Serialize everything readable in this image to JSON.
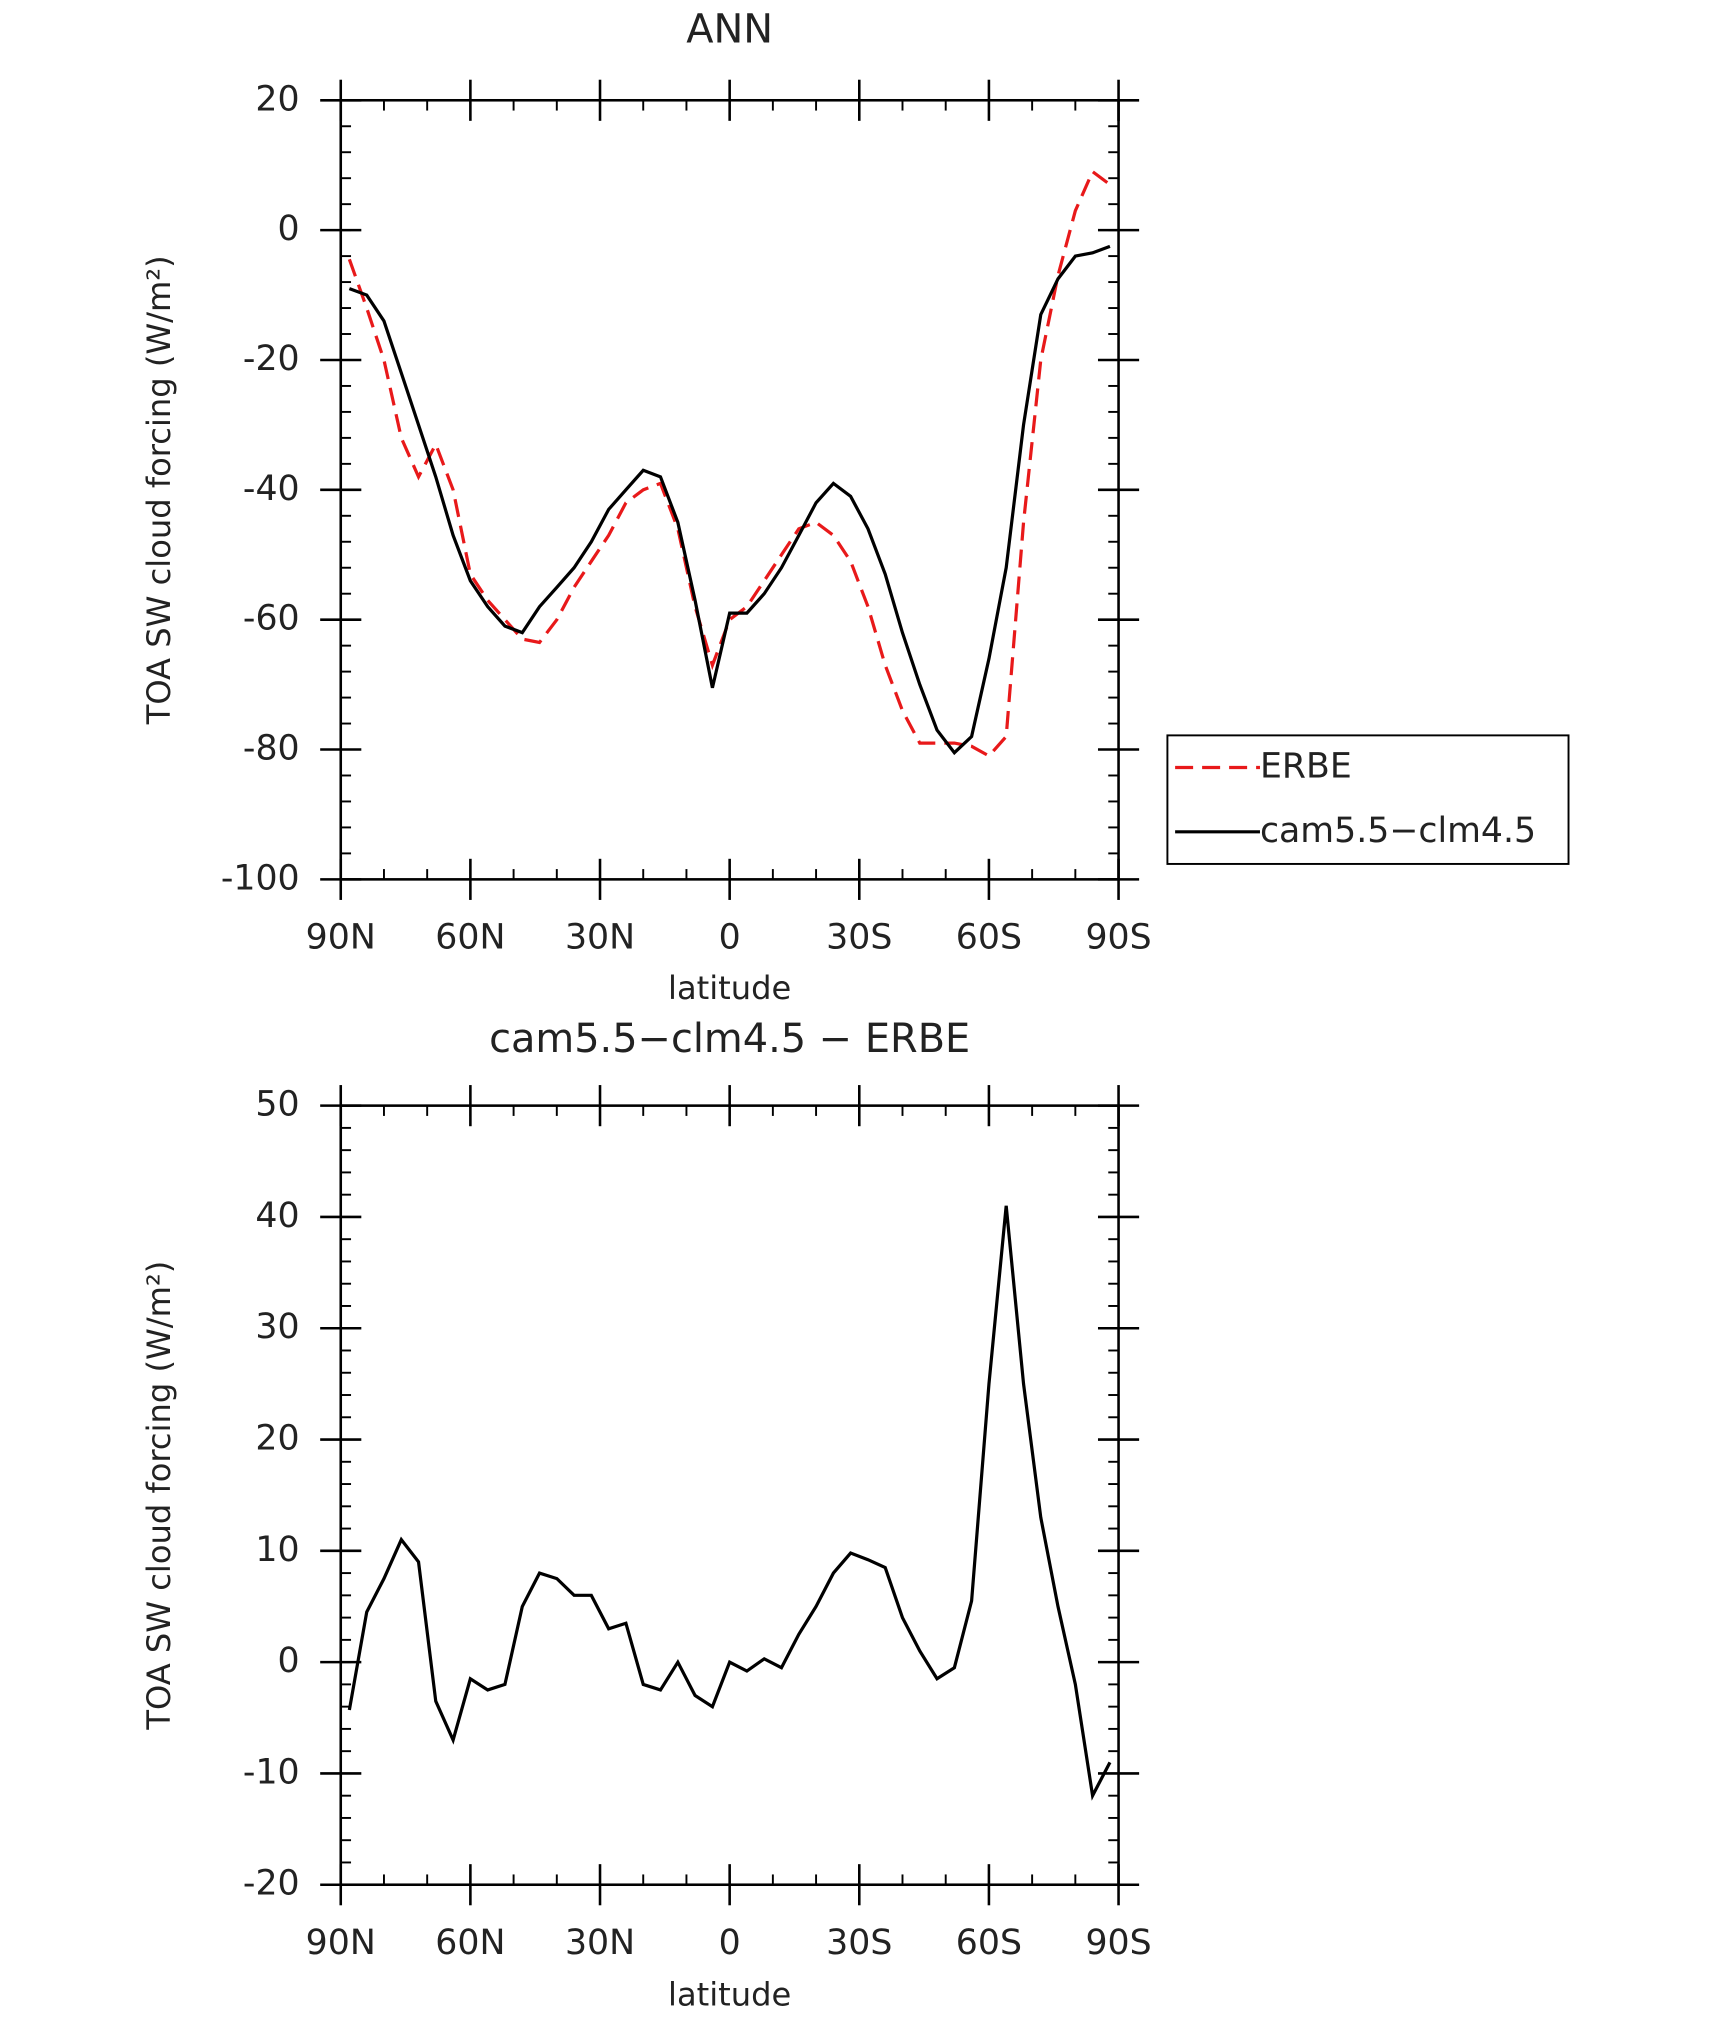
{
  "chart_data": [
    {
      "type": "line",
      "title": "ANN",
      "x_label": "latitude",
      "y_label": "TOA SW cloud forcing (W/m²)",
      "xlim": [
        90,
        -90
      ],
      "ylim": [
        -100,
        20
      ],
      "xticks": [
        {
          "value": 90,
          "label": "90N"
        },
        {
          "value": 60,
          "label": "60N"
        },
        {
          "value": 30,
          "label": "30N"
        },
        0,
        {
          "value": -30,
          "label": "30S"
        },
        {
          "value": -60,
          "label": "60S"
        },
        {
          "value": -90,
          "label": "90S"
        }
      ],
      "yticks": [
        -100,
        -80,
        -60,
        -40,
        -20,
        0,
        20
      ],
      "legend": "right",
      "x": [
        88,
        84,
        80,
        76,
        72,
        68,
        64,
        60,
        56,
        52,
        48,
        44,
        40,
        36,
        32,
        28,
        24,
        20,
        16,
        12,
        8,
        4,
        0,
        -4,
        -8,
        -12,
        -16,
        -20,
        -24,
        -28,
        -32,
        -36,
        -40,
        -44,
        -48,
        -52,
        -56,
        -60,
        -64,
        -68,
        -72,
        -76,
        -80,
        -84,
        -88
      ],
      "series": [
        {
          "name": "ERBE",
          "color": "#e8191a",
          "dash": true,
          "values": [
            -4.5,
            -12,
            -20,
            -32,
            -38,
            -33,
            -40,
            -53,
            -57,
            -60,
            -63,
            -63.5,
            -60,
            -55,
            -51,
            -47,
            -42,
            -40,
            -39,
            -46,
            -58,
            -67,
            -60,
            -58,
            -54,
            -50,
            -46,
            -45,
            -47,
            -51,
            -58,
            -67,
            -74,
            -79,
            -79,
            -79,
            -79.5,
            -81,
            -78,
            -45,
            -20,
            -7,
            3,
            9,
            7
          ]
        },
        {
          "name": "cam5.5−clm4.5",
          "color": "#000000",
          "dash": false,
          "values": [
            -9,
            -10,
            -14,
            -22,
            -30,
            -38,
            -47,
            -54,
            -58,
            -61,
            -62,
            -58,
            -55,
            -52,
            -48,
            -43,
            -40,
            -37,
            -38,
            -45,
            -57,
            -70.5,
            -59,
            -59,
            -56,
            -52,
            -47,
            -42,
            -39,
            -41,
            -46,
            -53,
            -62,
            -70,
            -77,
            -80.5,
            -78,
            -66,
            -52,
            -30,
            -13,
            -7.5,
            -4,
            -3.5,
            -2.5
          ]
        }
      ]
    },
    {
      "type": "line",
      "title": "cam5.5−clm4.5 − ERBE",
      "x_label": "latitude",
      "y_label": "TOA SW cloud forcing (W/m²)",
      "xlim": [
        90,
        -90
      ],
      "ylim": [
        -20,
        50
      ],
      "xticks": [
        {
          "value": 90,
          "label": "90N"
        },
        {
          "value": 60,
          "label": "60N"
        },
        {
          "value": 30,
          "label": "30N"
        },
        0,
        {
          "value": -30,
          "label": "30S"
        },
        {
          "value": -60,
          "label": "60S"
        },
        {
          "value": -90,
          "label": "90S"
        }
      ],
      "yticks": [
        -20,
        -10,
        0,
        10,
        20,
        30,
        40,
        50
      ],
      "x": [
        88,
        84,
        80,
        76,
        72,
        68,
        64,
        60,
        56,
        52,
        48,
        44,
        40,
        36,
        32,
        28,
        24,
        20,
        16,
        12,
        8,
        4,
        0,
        -4,
        -8,
        -12,
        -16,
        -20,
        -24,
        -28,
        -32,
        -36,
        -40,
        -44,
        -48,
        -52,
        -56,
        -60,
        -64,
        -68,
        -72,
        -76,
        -80,
        -84,
        -88
      ],
      "series": [
        {
          "color": "#000000",
          "dash": false,
          "values": [
            -4.3,
            4.5,
            7.5,
            11,
            9,
            -3.5,
            -7,
            -1.5,
            -2.5,
            -2,
            5,
            8,
            7.5,
            6,
            6,
            3,
            3.5,
            -2,
            -2.5,
            0,
            -3,
            -4,
            0,
            -0.8,
            0.3,
            -0.5,
            2.5,
            5,
            8,
            9.8,
            9.2,
            8.5,
            4,
            1,
            -1.5,
            -0.5,
            5.5,
            25,
            41,
            25,
            13,
            5,
            -2,
            -12,
            -9
          ]
        }
      ]
    }
  ]
}
